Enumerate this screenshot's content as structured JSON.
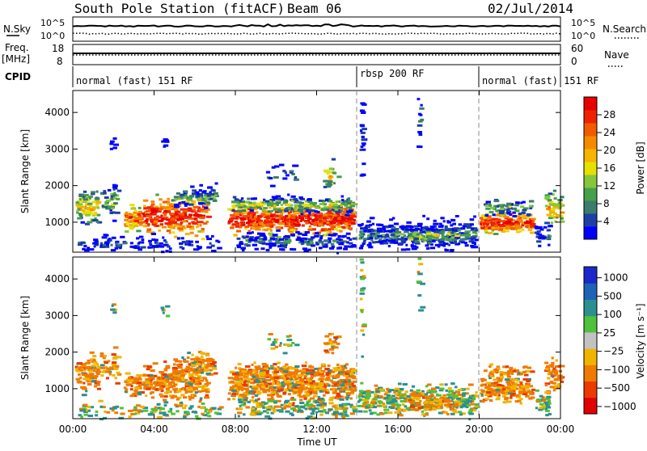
{
  "header": {
    "station": "South Pole Station (fitACF)",
    "beam": "Beam 06",
    "date": "02/Jul/2014"
  },
  "top_panels": {
    "nsky_label": "N.Sky",
    "nsky_ticks": [
      "10^5",
      "10^0"
    ],
    "nsearch_label": "N.Search",
    "nsearch_ticks": [
      "10^5",
      "10^0"
    ],
    "freq_label": "Freq.",
    "freq_unit": "[MHz]",
    "freq_ticks": [
      "18",
      "8"
    ],
    "nave_label": "Nave",
    "nave_ticks": [
      "60",
      "0"
    ],
    "cpid_label": "CPID"
  },
  "cpid_segments": [
    {
      "label": "normal (fast) 151 RF",
      "start_h": 0,
      "end_h": 14
    },
    {
      "label": "rbsp 200 RF",
      "start_h": 14,
      "end_h": 20
    },
    {
      "label": "normal (fast) 151 RF",
      "start_h": 20,
      "end_h": 24
    }
  ],
  "chart_data": [
    {
      "type": "heatmap",
      "ylabel": "Slant Range [km]",
      "xlabel": "",
      "x_ticks": [
        "00:00",
        "04:00",
        "08:00",
        "12:00",
        "16:00",
        "20:00",
        "00:00"
      ],
      "xlim_h": [
        0,
        24
      ],
      "y_ticks": [
        1000,
        2000,
        3000,
        4000
      ],
      "ylim": [
        180,
        4600
      ],
      "colorbar": {
        "label": "Power [dB]",
        "ticks": [
          "4",
          "8",
          "12",
          "16",
          "20",
          "24",
          "28"
        ],
        "colors": [
          "#0000ff",
          "#1d3fa6",
          "#3a7d6a",
          "#44a04a",
          "#86c63c",
          "#e6e000",
          "#f7b400",
          "#f58a00",
          "#f25a00",
          "#ee2200",
          "#e80000"
        ]
      }
    },
    {
      "type": "heatmap",
      "ylabel": "Slant Range [km]",
      "xlabel": "Time UT",
      "x_ticks": [
        "00:00",
        "04:00",
        "08:00",
        "12:00",
        "16:00",
        "20:00",
        "00:00"
      ],
      "xlim_h": [
        0,
        24
      ],
      "y_ticks": [
        1000,
        2000,
        3000,
        4000
      ],
      "ylim": [
        180,
        4600
      ],
      "colorbar": {
        "label": "Velocity [m s⁻¹]",
        "ticks": [
          "1000",
          "500",
          "100",
          "25",
          "−25",
          "−100",
          "−500",
          "−1000"
        ],
        "colors": [
          "#1d28c8",
          "#1f63b5",
          "#2d8f8f",
          "#4fc13a",
          "#c2c2c2",
          "#f0b400",
          "#ef7a00",
          "#ea3a00",
          "#e00000"
        ]
      }
    }
  ]
}
